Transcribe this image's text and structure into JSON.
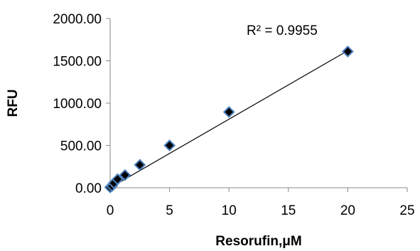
{
  "chart_data": {
    "type": "scatter",
    "title": "",
    "xlabel": "Resorufin,μM",
    "ylabel": "RFU",
    "xlim": [
      0,
      25
    ],
    "ylim": [
      0,
      2000
    ],
    "x_ticks": [
      0,
      5,
      10,
      15,
      20,
      25
    ],
    "y_ticks": [
      0,
      500,
      1000,
      1500,
      2000
    ],
    "x_tick_labels": [
      "0",
      "5",
      "10",
      "15",
      "20",
      "25"
    ],
    "y_tick_labels": [
      "0.00",
      "500.00",
      "1000.00",
      "1500.00",
      "2000.00"
    ],
    "grid": false,
    "legend": "none",
    "annotation": "R² = 0.9955",
    "series": [
      {
        "marker": "diamond",
        "x": [
          0,
          0.156,
          0.3125,
          0.625,
          1.25,
          2.5,
          5,
          10,
          20
        ],
        "y": [
          5,
          20,
          55,
          100,
          150,
          270,
          500,
          895,
          1610
        ]
      }
    ],
    "trendline": {
      "type": "linear",
      "from": [
        0,
        0
      ],
      "to": [
        20,
        1620
      ]
    },
    "colors": {
      "marker_fill": "#000000",
      "marker_stroke": "#4f81bd",
      "trendline": "#000000",
      "axis": "#888888"
    }
  }
}
